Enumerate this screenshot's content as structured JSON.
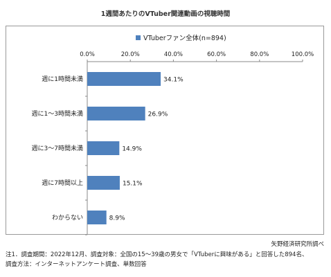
{
  "chart_data": {
    "type": "bar",
    "orientation": "horizontal",
    "title": "1週間あたりのVTuber関連動画の視聴時間",
    "categories": [
      "週に1時間未満",
      "週に1～3時間未満",
      "週に3～7時間未満",
      "週に7時間以上",
      "わからない"
    ],
    "series": [
      {
        "name": "VTuberファン全体(n=894)",
        "values": [
          34.1,
          26.9,
          14.9,
          15.1,
          8.9
        ],
        "value_labels": [
          "34.1%",
          "26.9%",
          "14.9%",
          "15.1%",
          "8.9%"
        ]
      }
    ],
    "xlim": [
      0,
      100
    ],
    "x_ticks": [
      0,
      20,
      40,
      60,
      80,
      100
    ],
    "x_tick_labels": [
      "0.0%",
      "20.0%",
      "40.0%",
      "60.0%",
      "80.0%",
      "100.0%"
    ],
    "x_axis_position": "top",
    "grid": false,
    "legend_position": "top",
    "bar_color": "#4f81bd"
  },
  "credit": "矢野経済研究所調べ",
  "notes": [
    "注1．調査期間：2022年12月、調査対象：全国の15～39歳の男女で「VTuberに興味がある」と回答した894名、",
    "調査方法：インターネットアンケート調査、単数回答"
  ]
}
